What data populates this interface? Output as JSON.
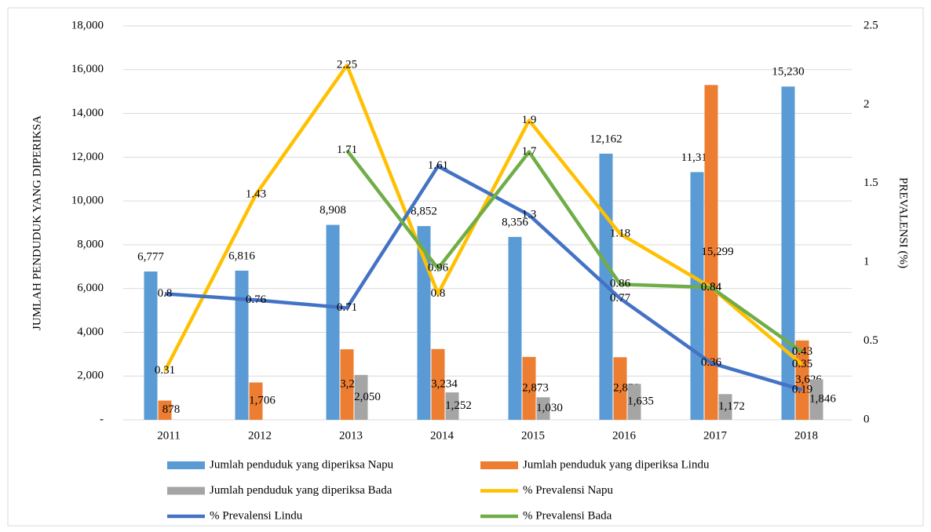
{
  "chart_data": {
    "type": "bar-line",
    "y_label": "JUMLAH PENDUDUK YANG DIPERIKSA",
    "y2_label": "PREVALENSI (%)",
    "categories": [
      "2011",
      "2012",
      "2013",
      "2014",
      "2015",
      "2016",
      "2017",
      "2018"
    ],
    "ylim": [
      0,
      18000
    ],
    "yticks": [
      {
        "value": 0,
        "label": "-"
      },
      {
        "value": 2000,
        "label": "2,000"
      },
      {
        "value": 4000,
        "label": "4,000"
      },
      {
        "value": 6000,
        "label": "6,000"
      },
      {
        "value": 8000,
        "label": "8,000"
      },
      {
        "value": 10000,
        "label": "10,000"
      },
      {
        "value": 12000,
        "label": "12,000"
      },
      {
        "value": 14000,
        "label": "14,000"
      },
      {
        "value": 16000,
        "label": "16,000"
      },
      {
        "value": 18000,
        "label": "18,000"
      }
    ],
    "y2lim": [
      0,
      2.5
    ],
    "y2ticks": [
      0,
      0.5,
      1,
      1.5,
      2,
      2.5
    ],
    "grid": true,
    "legend": "bottom",
    "series": [
      {
        "name": "Jumlah penduduk yang diperiksa Napu",
        "kind": "bar",
        "color": "#5b9bd5",
        "values": [
          6777,
          6816,
          8908,
          8852,
          8356,
          12162,
          11318,
          15230
        ],
        "value_labels": [
          "6,777",
          "6,816",
          "8,908",
          "8,852",
          "8,356",
          "12,162",
          "11,318",
          "15,230"
        ]
      },
      {
        "name": "Jumlah penduduk yang diperiksa Lindu",
        "kind": "bar",
        "color": "#ed7d31",
        "values": [
          878,
          1706,
          3222,
          3234,
          2873,
          2859,
          15299,
          3626
        ],
        "value_labels": [
          "878",
          "1,706",
          "3,222",
          "3,234",
          "2,873",
          "2,859",
          "15,299",
          "3,626"
        ]
      },
      {
        "name": "Jumlah penduduk yang diperiksa Bada",
        "kind": "bar",
        "color": "#a5a5a5",
        "values": [
          null,
          null,
          2050,
          1252,
          1030,
          1635,
          1172,
          1846
        ],
        "value_labels": [
          null,
          null,
          "2,050",
          "1,252",
          "1,030",
          "1,635",
          "1,172",
          "1,846"
        ]
      },
      {
        "name": "% Prevalensi Napu",
        "kind": "line",
        "axis": "y2",
        "color": "#ffc000",
        "values": [
          0.31,
          1.43,
          2.25,
          0.8,
          1.9,
          1.18,
          0.84,
          0.35
        ]
      },
      {
        "name": "% Prevalensi Lindu",
        "kind": "line",
        "axis": "y2",
        "color": "#4472c4",
        "values": [
          0.8,
          0.76,
          0.71,
          1.61,
          1.3,
          0.77,
          0.36,
          0.19
        ]
      },
      {
        "name": "% Prevalensi Bada",
        "kind": "line",
        "axis": "y2",
        "color": "#70ad47",
        "values": [
          null,
          null,
          1.71,
          0.96,
          1.7,
          0.86,
          0.84,
          0.43
        ]
      }
    ]
  }
}
